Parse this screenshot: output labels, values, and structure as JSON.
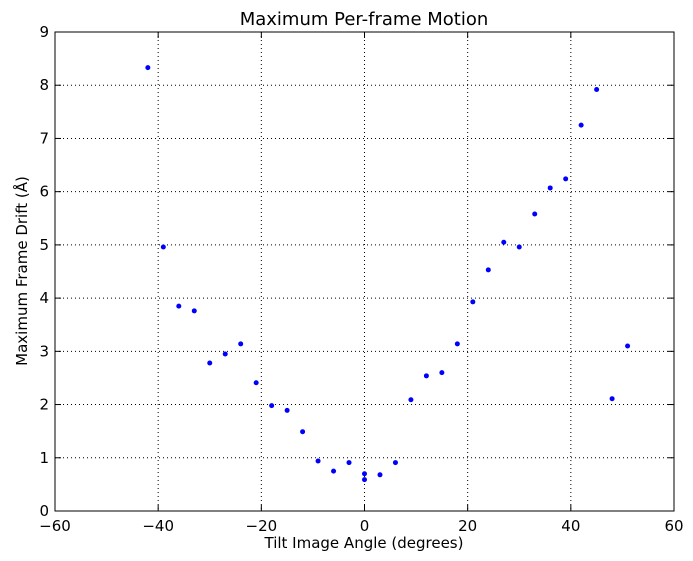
{
  "chart_data": {
    "type": "scatter",
    "title": "Maximum Per-frame Motion",
    "xlabel": "Tilt Image Angle (degrees)",
    "ylabel": "Maximum Frame Drift (Å)",
    "xlim": [
      -60,
      60
    ],
    "ylim": [
      0,
      9
    ],
    "xticks": [
      -60,
      -40,
      -20,
      0,
      20,
      40,
      60
    ],
    "xtick_labels": [
      "−60",
      "−40",
      "−20",
      "0",
      "20",
      "40",
      "60"
    ],
    "yticks": [
      0,
      1,
      2,
      3,
      4,
      5,
      6,
      7,
      8,
      9
    ],
    "ytick_labels": [
      "0",
      "1",
      "2",
      "3",
      "4",
      "5",
      "6",
      "7",
      "8",
      "9"
    ],
    "grid": true,
    "marker_color": "#0000ff",
    "series": [
      {
        "x": [
          -42,
          -39,
          -36,
          -33,
          -30,
          -27,
          -24,
          -21,
          -18,
          -15,
          -12,
          -9,
          -6,
          -3,
          0,
          0,
          3,
          6,
          9,
          12,
          15,
          18,
          21,
          24,
          27,
          30,
          33,
          36,
          39,
          42,
          45,
          48,
          51
        ],
        "y": [
          8.33,
          4.96,
          3.85,
          3.76,
          2.78,
          2.95,
          3.14,
          2.41,
          1.98,
          1.89,
          1.49,
          0.94,
          0.75,
          0.91,
          0.59,
          0.7,
          0.68,
          0.91,
          2.09,
          2.54,
          2.6,
          3.14,
          3.93,
          4.53,
          5.05,
          4.96,
          5.58,
          6.07,
          6.24,
          7.25,
          7.92,
          2.11,
          3.1
        ]
      }
    ]
  }
}
